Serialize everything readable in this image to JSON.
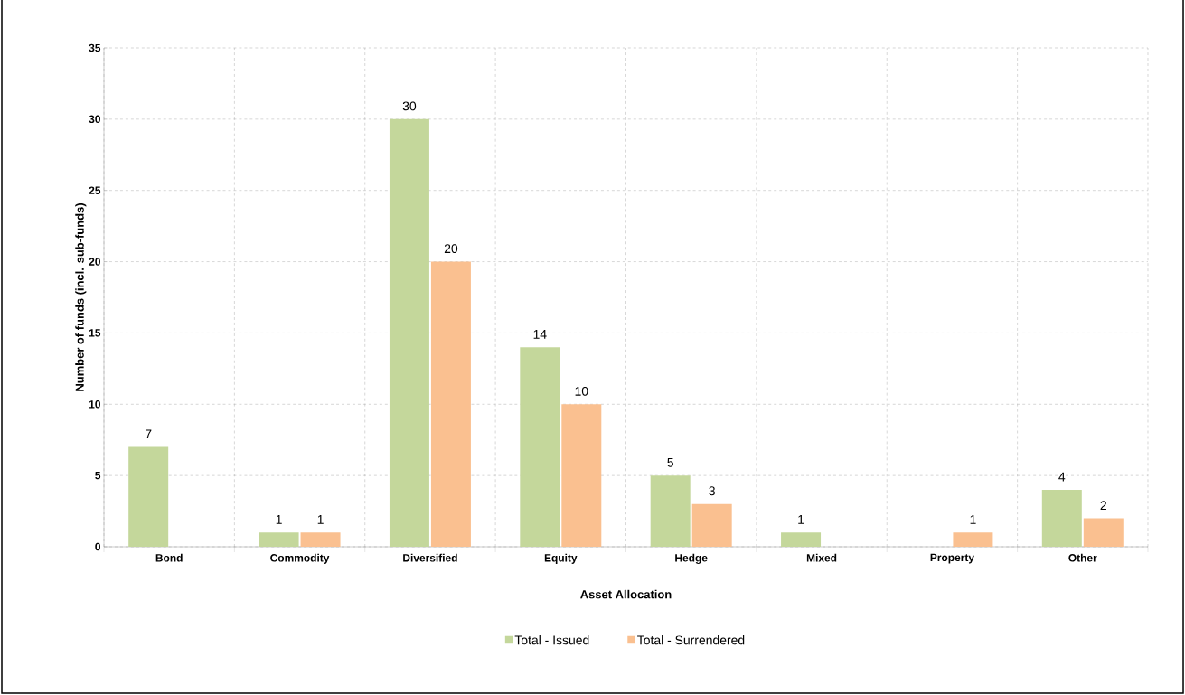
{
  "chart_data": {
    "type": "bar",
    "xlabel": "Asset Allocation",
    "ylabel": "Number of funds (incl. sub-funds)",
    "categories": [
      "Bond",
      "Commodity",
      "Diversified",
      "Equity",
      "Hedge",
      "Mixed",
      "Property",
      "Other"
    ],
    "series": [
      {
        "name": "Total - Issued",
        "color": "#c4d79b",
        "values": [
          7,
          1,
          30,
          14,
          5,
          1,
          null,
          4
        ]
      },
      {
        "name": "Total - Surrendered",
        "color": "#fac090",
        "values": [
          null,
          1,
          20,
          10,
          3,
          null,
          1,
          2
        ]
      }
    ],
    "ylim": [
      0,
      35
    ],
    "yticks": [
      0,
      5,
      10,
      15,
      20,
      25,
      30,
      35
    ],
    "grid": true,
    "legend": "bottom",
    "data_labels": true
  }
}
